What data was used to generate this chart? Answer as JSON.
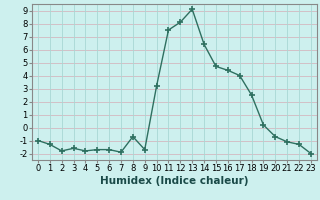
{
  "x": [
    0,
    1,
    2,
    3,
    4,
    5,
    6,
    7,
    8,
    9,
    10,
    11,
    12,
    13,
    14,
    15,
    16,
    17,
    18,
    19,
    20,
    21,
    22,
    23
  ],
  "y": [
    -1.0,
    -1.3,
    -1.8,
    -1.6,
    -1.8,
    -1.7,
    -1.7,
    -1.9,
    -0.7,
    -1.7,
    3.2,
    7.5,
    8.1,
    9.1,
    6.4,
    4.7,
    4.4,
    4.0,
    2.5,
    0.2,
    -0.7,
    -1.1,
    -1.3,
    -2.0
  ],
  "line_color": "#2e7060",
  "marker": "+",
  "marker_size": 4,
  "marker_lw": 1.2,
  "xlabel": "Humidex (Indice chaleur)",
  "bg_color": "#cdf0ee",
  "hgrid_color": "#d4b8c0",
  "vgrid_color": "#a8d8d4",
  "xlim": [
    -0.5,
    23.5
  ],
  "ylim": [
    -2.5,
    9.5
  ],
  "yticks": [
    -2,
    -1,
    0,
    1,
    2,
    3,
    4,
    5,
    6,
    7,
    8,
    9
  ],
  "xticks": [
    0,
    1,
    2,
    3,
    4,
    5,
    6,
    7,
    8,
    9,
    10,
    11,
    12,
    13,
    14,
    15,
    16,
    17,
    18,
    19,
    20,
    21,
    22,
    23
  ],
  "xlabel_fontsize": 7.5,
  "tick_fontsize": 6.0,
  "line_width": 1.0,
  "spine_color": "#888888"
}
